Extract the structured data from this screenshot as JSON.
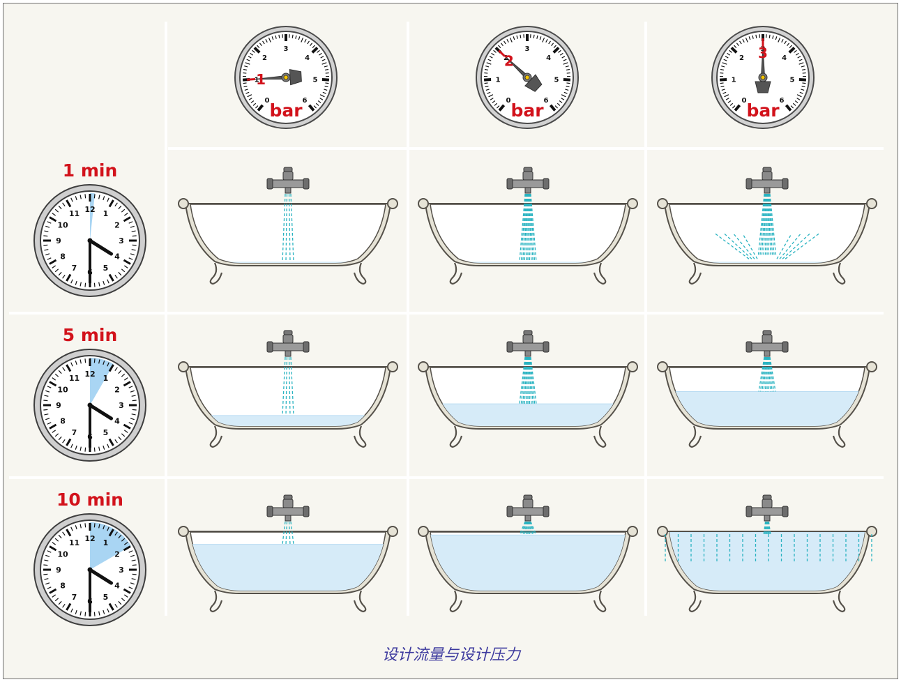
{
  "colors": {
    "accent_red": "#d2121b",
    "water": "#d6ebf8",
    "spray": "#29b3c1",
    "elapsed_sector": "#a9d5f3",
    "caption_text": "#3d3a9e"
  },
  "gauge": {
    "unit": "bar",
    "scale_labels": [
      "0",
      "1",
      "2",
      "3",
      "4",
      "5",
      "6"
    ],
    "columns": [
      {
        "pressure": "1"
      },
      {
        "pressure": "2"
      },
      {
        "pressure": "3"
      }
    ]
  },
  "clock": {
    "numbers": [
      "12",
      "1",
      "2",
      "3",
      "4",
      "5",
      "6",
      "7",
      "8",
      "9",
      "10",
      "11"
    ],
    "rows": [
      {
        "time_label": "1 min",
        "elapsed_minutes": 1
      },
      {
        "time_label": "5 min",
        "elapsed_minutes": 5
      },
      {
        "time_label": "10 min",
        "elapsed_minutes": 10
      }
    ]
  },
  "bathtubs": {
    "fill_fraction": [
      [
        0.02,
        0.02,
        0.02
      ],
      [
        0.18,
        0.38,
        0.59
      ],
      [
        0.79,
        0.95,
        1.0
      ]
    ],
    "spray": [
      [
        "narrow",
        "medium",
        "scatter"
      ],
      [
        "narrow",
        "medium",
        "medium"
      ],
      [
        "narrow",
        "medium",
        "overflow"
      ]
    ]
  },
  "caption": "设计流量与设计压力"
}
